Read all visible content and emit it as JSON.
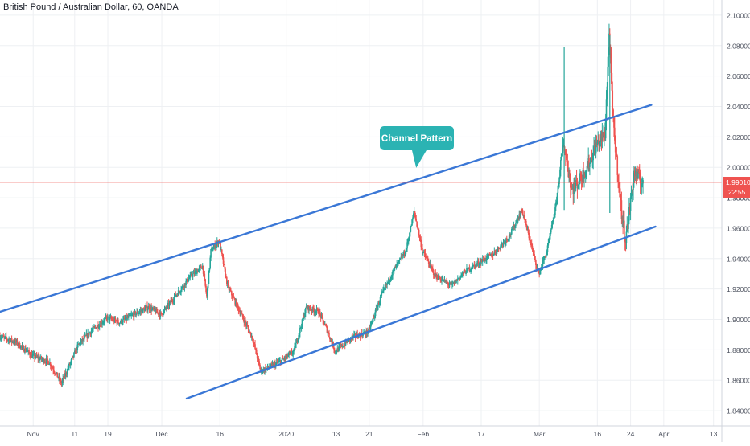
{
  "header": {
    "title": "British Pound / Australian Dollar, 60, OANDA"
  },
  "colors": {
    "up": "#26a69a",
    "down": "#ef5350",
    "channel": "#3a77d6",
    "grid": "#eef0f3",
    "price_line": "#ef5350",
    "price_badge": "#ef5350",
    "callout_fill": "#2bb3b3",
    "callout_text": "#ffffff",
    "axis_text": "#4a4f5c"
  },
  "chart_data": {
    "type": "candlestick",
    "title": "British Pound / Australian Dollar, 60, OANDA",
    "x_axis": {
      "unit": "date",
      "range": [
        "2019-10-24",
        "2020-04-15"
      ],
      "ticks": [
        {
          "date": "2019-11-01",
          "label": "Nov"
        },
        {
          "date": "2019-11-11",
          "label": "11"
        },
        {
          "date": "2019-11-19",
          "label": "19"
        },
        {
          "date": "2019-12-02",
          "label": "Dec"
        },
        {
          "date": "2019-12-16",
          "label": "16"
        },
        {
          "date": "2020-01-01",
          "label": "2020"
        },
        {
          "date": "2020-01-13",
          "label": "13"
        },
        {
          "date": "2020-01-21",
          "label": "21"
        },
        {
          "date": "2020-02-03",
          "label": "Feb"
        },
        {
          "date": "2020-02-17",
          "label": "17"
        },
        {
          "date": "2020-03-02",
          "label": "Mar"
        },
        {
          "date": "2020-03-16",
          "label": "16"
        },
        {
          "date": "2020-03-24",
          "label": "24"
        },
        {
          "date": "2020-04-01",
          "label": "Apr"
        },
        {
          "date": "2020-04-13",
          "label": "13"
        }
      ]
    },
    "y_axis": {
      "range": [
        1.83,
        2.11
      ],
      "ticks": [
        "1.84000",
        "1.86000",
        "1.88000",
        "1.90000",
        "1.92000",
        "1.94000",
        "1.96000",
        "1.98000",
        "2.00000",
        "2.02000",
        "2.04000",
        "2.06000",
        "2.08000",
        "2.10000"
      ]
    },
    "grid": true,
    "price_path": [
      [
        "2019-10-24",
        1.889
      ],
      [
        "2019-10-28",
        1.885
      ],
      [
        "2019-11-01",
        1.876
      ],
      [
        "2019-11-05",
        1.872
      ],
      [
        "2019-11-08",
        1.858
      ],
      [
        "2019-11-12",
        1.883
      ],
      [
        "2019-11-15",
        1.892
      ],
      [
        "2019-11-19",
        1.901
      ],
      [
        "2019-11-22",
        1.898
      ],
      [
        "2019-11-26",
        1.904
      ],
      [
        "2019-11-29",
        1.908
      ],
      [
        "2019-12-02",
        1.903
      ],
      [
        "2019-12-05",
        1.914
      ],
      [
        "2019-12-09",
        1.928
      ],
      [
        "2019-12-12",
        1.935
      ],
      [
        "2019-12-13",
        1.915
      ],
      [
        "2019-12-14",
        1.945
      ],
      [
        "2019-12-16",
        1.952
      ],
      [
        "2019-12-18",
        1.922
      ],
      [
        "2019-12-21",
        1.905
      ],
      [
        "2019-12-24",
        1.888
      ],
      [
        "2019-12-26",
        1.866
      ],
      [
        "2019-12-30",
        1.871
      ],
      [
        "2020-01-03",
        1.879
      ],
      [
        "2020-01-06",
        1.908
      ],
      [
        "2020-01-09",
        1.905
      ],
      [
        "2020-01-11",
        1.893
      ],
      [
        "2020-01-13",
        1.879
      ],
      [
        "2020-01-17",
        1.888
      ],
      [
        "2020-01-21",
        1.892
      ],
      [
        "2020-01-24",
        1.915
      ],
      [
        "2020-01-27",
        1.932
      ],
      [
        "2020-01-30",
        1.945
      ],
      [
        "2020-02-01",
        1.971
      ],
      [
        "2020-02-03",
        1.945
      ],
      [
        "2020-02-06",
        1.929
      ],
      [
        "2020-02-10",
        1.922
      ],
      [
        "2020-02-13",
        1.931
      ],
      [
        "2020-02-17",
        1.938
      ],
      [
        "2020-02-20",
        1.943
      ],
      [
        "2020-02-24",
        1.955
      ],
      [
        "2020-02-27",
        1.972
      ],
      [
        "2020-03-02",
        1.93
      ],
      [
        "2020-03-04",
        1.945
      ],
      [
        "2020-03-06",
        1.972
      ],
      [
        "2020-03-08",
        2.016
      ],
      [
        "2020-03-10",
        1.985
      ],
      [
        "2020-03-12",
        1.992
      ],
      [
        "2020-03-14",
        2.002
      ],
      [
        "2020-03-16",
        2.015
      ],
      [
        "2020-03-18",
        2.022
      ],
      [
        "2020-03-19",
        2.088
      ],
      [
        "2020-03-20",
        2.028
      ],
      [
        "2020-03-22",
        1.97
      ],
      [
        "2020-03-23",
        1.952
      ],
      [
        "2020-03-25",
        1.996
      ],
      [
        "2020-03-27",
        1.99
      ]
    ],
    "spikes": [
      {
        "date": "2020-03-08",
        "high": 2.079,
        "low": 1.972
      },
      {
        "date": "2020-03-19",
        "high": 2.087,
        "low": 1.97
      }
    ],
    "channel_lines": [
      {
        "name": "upper",
        "from": [
          "2019-10-24",
          1.905
        ],
        "to": [
          "2020-03-29",
          2.041
        ]
      },
      {
        "name": "lower",
        "from": [
          "2019-12-08",
          1.848
        ],
        "to": [
          "2020-03-30",
          1.961
        ]
      }
    ],
    "current_price": {
      "value": 1.9901,
      "label": "1.99010",
      "countdown": "22:55",
      "partial_label": "1.98000"
    },
    "annotations": [
      {
        "text": "Channel Pattern",
        "anchor": [
          "2020-01-30",
          1.997
        ]
      }
    ]
  }
}
